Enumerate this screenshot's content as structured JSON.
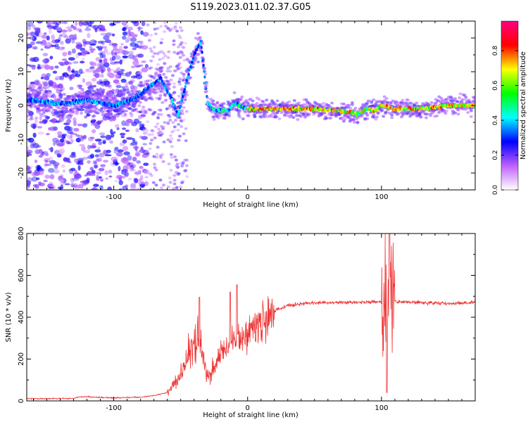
{
  "title": "S119.2023.011.02.37.G05",
  "chart_data": [
    {
      "type": "heatmap",
      "name": "spectrogram",
      "xlabel": "Height of straight line (km)",
      "ylabel": "Frequency (Hz)",
      "xlim": [
        -165,
        170
      ],
      "ylim": [
        -25,
        25
      ],
      "xticks": [
        -100,
        0,
        100
      ],
      "yticks": [
        -20,
        -10,
        0,
        10,
        20
      ],
      "grid": false,
      "colorbar": {
        "label": "Normalized spectral amplitude",
        "range": [
          0,
          0.97
        ],
        "ticks": [
          "0.0",
          "0.2",
          "0.4",
          "0.6",
          "0.8"
        ],
        "tick_values": [
          0,
          0.2,
          0.4,
          0.6,
          0.8
        ],
        "colors": [
          "#ffffff",
          "#c060ff",
          "#0000ff",
          "#00ffff",
          "#00ff00",
          "#ffff00",
          "#ff0000",
          "#ff0080"
        ]
      },
      "ridge": [
        {
          "x": -160,
          "y": 1.5
        },
        {
          "x": -140,
          "y": 0.5
        },
        {
          "x": -120,
          "y": 1.5
        },
        {
          "x": -100,
          "y": 0.0
        },
        {
          "x": -85,
          "y": 2.0
        },
        {
          "x": -75,
          "y": 5.0
        },
        {
          "x": -65,
          "y": 8.0
        },
        {
          "x": -58,
          "y": 3.0
        },
        {
          "x": -52,
          "y": -3.0
        },
        {
          "x": -45,
          "y": 8.0
        },
        {
          "x": -40,
          "y": 15.0
        },
        {
          "x": -35,
          "y": 19.0
        },
        {
          "x": -30,
          "y": 1.0
        },
        {
          "x": -25,
          "y": -1.5
        },
        {
          "x": -15,
          "y": -1.5
        },
        {
          "x": -10,
          "y": 0.5
        },
        {
          "x": 0,
          "y": -1.0
        },
        {
          "x": 20,
          "y": -1.0
        },
        {
          "x": 50,
          "y": -1.0
        },
        {
          "x": 65,
          "y": -1.5
        },
        {
          "x": 75,
          "y": -2.0
        },
        {
          "x": 82,
          "y": -2.5
        },
        {
          "x": 90,
          "y": -1.0
        },
        {
          "x": 95,
          "y": -1.5
        },
        {
          "x": 100,
          "y": 0.0
        },
        {
          "x": 110,
          "y": -1.0
        },
        {
          "x": 130,
          "y": -1.0
        },
        {
          "x": 150,
          "y": 0.0
        },
        {
          "x": 170,
          "y": 0.0
        }
      ]
    },
    {
      "type": "line",
      "name": "snr",
      "xlabel": "Height of straight line (km)",
      "ylabel": "SNR (10 * v/v)",
      "xlim": [
        -165,
        170
      ],
      "ylim": [
        0,
        800
      ],
      "xticks": [
        -100,
        0,
        100
      ],
      "yticks": [
        0,
        200,
        400,
        600,
        800
      ],
      "grid": false,
      "color": "#ee3333",
      "envelope": [
        {
          "x": -165,
          "y": 10
        },
        {
          "x": -130,
          "y": 12
        },
        {
          "x": -125,
          "y": 20
        },
        {
          "x": -100,
          "y": 15
        },
        {
          "x": -80,
          "y": 18
        },
        {
          "x": -70,
          "y": 25
        },
        {
          "x": -60,
          "y": 40
        },
        {
          "x": -55,
          "y": 80
        },
        {
          "x": -50,
          "y": 120
        },
        {
          "x": -45,
          "y": 200
        },
        {
          "x": -40,
          "y": 280
        },
        {
          "x": -37,
          "y": 300
        },
        {
          "x": -33,
          "y": 210
        },
        {
          "x": -30,
          "y": 130
        },
        {
          "x": -25,
          "y": 160
        },
        {
          "x": -20,
          "y": 230
        },
        {
          "x": -15,
          "y": 270
        },
        {
          "x": -10,
          "y": 290
        },
        {
          "x": -5,
          "y": 300
        },
        {
          "x": 0,
          "y": 320
        },
        {
          "x": 10,
          "y": 370
        },
        {
          "x": 20,
          "y": 430
        },
        {
          "x": 30,
          "y": 455
        },
        {
          "x": 40,
          "y": 465
        },
        {
          "x": 60,
          "y": 470
        },
        {
          "x": 80,
          "y": 470
        },
        {
          "x": 95,
          "y": 475
        },
        {
          "x": 100,
          "y": 472
        },
        {
          "x": 110,
          "y": 475
        },
        {
          "x": 130,
          "y": 470
        },
        {
          "x": 150,
          "y": 465
        },
        {
          "x": 170,
          "y": 470
        }
      ],
      "peaks": [
        {
          "x": -36,
          "y": 495
        },
        {
          "x": -13,
          "y": 520
        },
        {
          "x": -8,
          "y": 555
        },
        {
          "x": 106,
          "y": 810
        },
        {
          "x": 104,
          "y": 40
        }
      ]
    }
  ]
}
